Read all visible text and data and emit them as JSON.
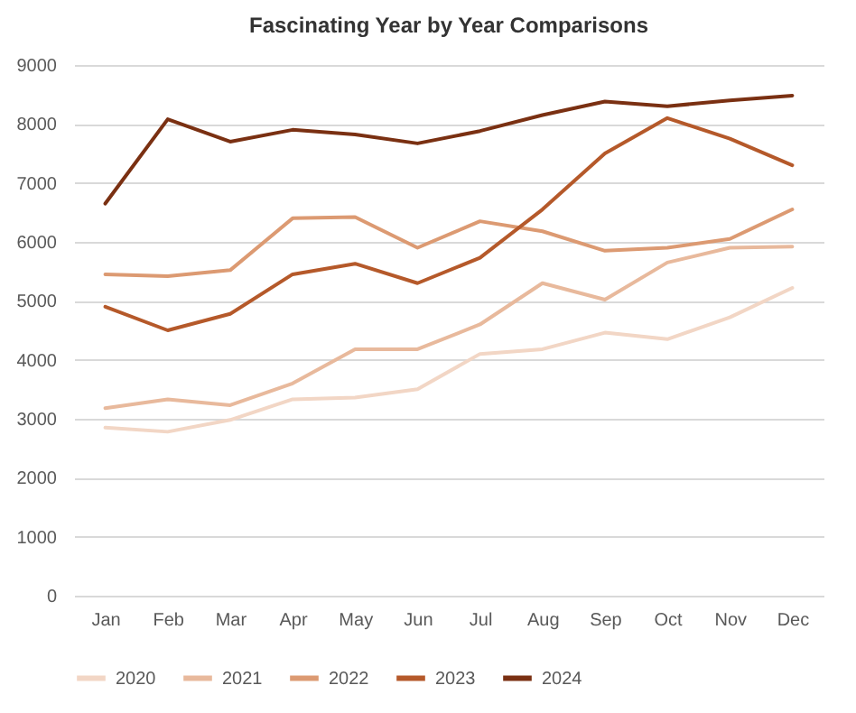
{
  "chart_data": {
    "type": "line",
    "title": "Fascinating Year by Year Comparisons",
    "categories": [
      "Jan",
      "Feb",
      "Mar",
      "Apr",
      "May",
      "Jun",
      "Jul",
      "Aug",
      "Sep",
      "Oct",
      "Nov",
      "Dec"
    ],
    "series": [
      {
        "name": "2020",
        "color": "#f2d6c5",
        "values": [
          2850,
          2780,
          2980,
          3330,
          3360,
          3500,
          4100,
          4180,
          4460,
          4350,
          4720,
          5220
        ]
      },
      {
        "name": "2021",
        "color": "#e8b99c",
        "values": [
          3180,
          3330,
          3230,
          3600,
          4180,
          4180,
          4600,
          5300,
          5020,
          5650,
          5900,
          5920
        ]
      },
      {
        "name": "2022",
        "color": "#dc9a72",
        "values": [
          5450,
          5420,
          5520,
          6400,
          6420,
          5900,
          6350,
          6180,
          5850,
          5900,
          6050,
          6550
        ]
      },
      {
        "name": "2023",
        "color": "#b5592a",
        "values": [
          4900,
          4500,
          4780,
          5450,
          5630,
          5300,
          5730,
          6550,
          7500,
          8100,
          7750,
          7300
        ]
      },
      {
        "name": "2024",
        "color": "#7a3012",
        "values": [
          6650,
          8080,
          7700,
          7900,
          7820,
          7670,
          7880,
          8150,
          8380,
          8300,
          8400,
          8480
        ]
      }
    ],
    "ylim": [
      0,
      9000
    ],
    "yticks": [
      0,
      1000,
      2000,
      3000,
      4000,
      5000,
      6000,
      7000,
      8000,
      9000
    ],
    "grid": "y",
    "legend": "bottom",
    "marker": "none",
    "line_style": "solid"
  }
}
